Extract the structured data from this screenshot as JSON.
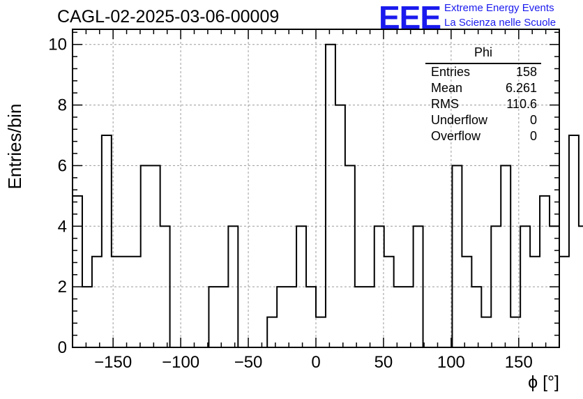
{
  "header": {
    "title": "CAGL-02-2025-03-06-00009",
    "logo": "EEE",
    "brand_line1": "Extreme Energy Events",
    "brand_line2": "La Scienza nelle Scuole"
  },
  "stats": {
    "title": "Phi",
    "rows": [
      {
        "label": "Entries",
        "value": "158"
      },
      {
        "label": "Mean",
        "value": "6.261"
      },
      {
        "label": "RMS",
        "value": "110.6"
      },
      {
        "label": "Underflow",
        "value": "0"
      },
      {
        "label": "Overflow",
        "value": "0"
      }
    ]
  },
  "chart_data": {
    "type": "histogram",
    "title": "CAGL-02-2025-03-06-00009",
    "xlabel": "ϕ [°]",
    "ylabel": "Entries/bin",
    "xlim": [
      -180,
      180
    ],
    "ylim": [
      0,
      10.5
    ],
    "bin_width": 7.2,
    "bin_edges_start": -180,
    "values": [
      5,
      2,
      3,
      7,
      3,
      3,
      3,
      6,
      6,
      4,
      0,
      0,
      0,
      0,
      2,
      2,
      4,
      0,
      0,
      0,
      1,
      2,
      2,
      4,
      2,
      1,
      10,
      8,
      6,
      2,
      2,
      4,
      3,
      2,
      2,
      4,
      0,
      0,
      0,
      6,
      3,
      2,
      1,
      4,
      6,
      1,
      4,
      3,
      5,
      4,
      3,
      7,
      4
    ],
    "xticks": [
      -150,
      -100,
      -50,
      0,
      50,
      100,
      150
    ],
    "xtick_labels": [
      "−150",
      "−100",
      "−50",
      "0",
      "50",
      "100",
      "150"
    ],
    "yticks": [
      0,
      2,
      4,
      6,
      8,
      10
    ],
    "ytick_labels": [
      "0",
      "2",
      "4",
      "6",
      "8",
      "10"
    ],
    "grid": true,
    "series_color": "#000000"
  }
}
